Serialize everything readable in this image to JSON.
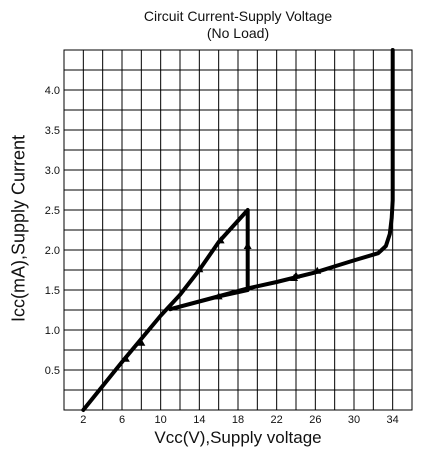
{
  "chart_data": {
    "type": "line",
    "title": "Circuit Current-Supply Voltage",
    "subtitle": "(No Load)",
    "xlabel": "Vcc(V),Supply voltage",
    "ylabel": "Icc(mA),Supply Current",
    "xlim": [
      0,
      36
    ],
    "ylim": [
      0,
      4.5
    ],
    "xticks": [
      2,
      6,
      10,
      14,
      18,
      22,
      26,
      30,
      34
    ],
    "yticks": [
      0.5,
      1.0,
      1.5,
      2.0,
      2.5,
      3.0,
      3.5,
      4.0
    ],
    "ytick_labels": [
      "0.5",
      "1.0",
      "1.5",
      "2.0",
      "2.5",
      "3.0",
      "3.5",
      "4.0"
    ],
    "grid": true,
    "series": [
      {
        "values": [
          [
            2,
            0
          ],
          [
            6,
            0.6
          ],
          [
            10,
            1.18
          ],
          [
            12,
            1.44
          ],
          [
            14,
            1.75
          ],
          [
            16,
            2.1
          ],
          [
            19,
            2.5
          ],
          [
            19,
            1.5
          ],
          [
            16,
            1.42
          ],
          [
            11,
            1.26
          ],
          [
            19,
            1.52
          ],
          [
            22,
            1.6
          ],
          [
            26,
            1.72
          ],
          [
            30,
            1.87
          ],
          [
            32.5,
            1.96
          ],
          [
            33.3,
            2.05
          ],
          [
            33.7,
            2.2
          ],
          [
            33.9,
            2.4
          ],
          [
            34,
            2.62
          ],
          [
            34,
            4.5
          ]
        ],
        "arrow_points": [
          [
            6.4,
            0.64
          ],
          [
            8,
            0.84
          ],
          [
            14,
            1.76
          ],
          [
            16.2,
            2.12
          ],
          [
            19,
            2.05
          ],
          [
            16,
            1.42
          ],
          [
            23.8,
            1.65
          ],
          [
            24,
            1.68
          ],
          [
            26.2,
            1.74
          ]
        ]
      }
    ]
  }
}
